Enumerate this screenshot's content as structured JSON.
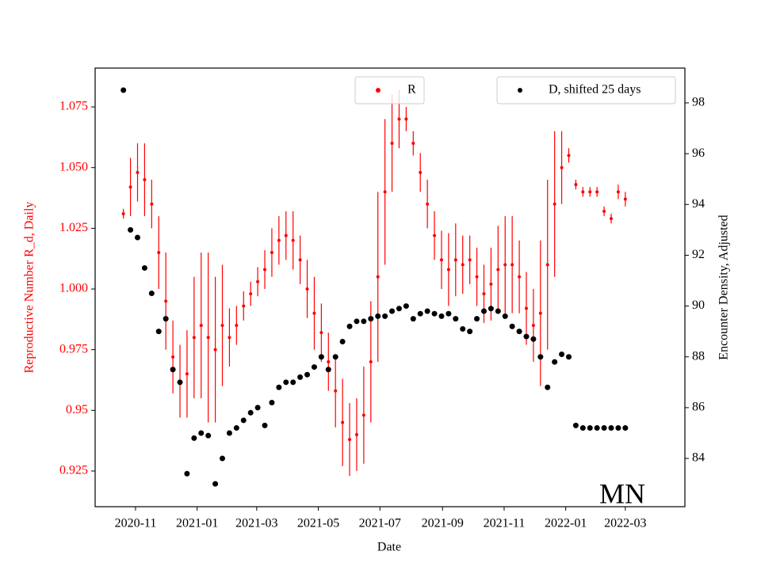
{
  "chart_data": {
    "type": "errorbar_scatter_dual",
    "xlabel": "Date",
    "ylabel": "Reproductive Number R_d, Daily",
    "y2label": "Encounter Density, Adjusted",
    "annotation": "MN",
    "xlim": [
      "2020-09-22",
      "2022-04-29"
    ],
    "xticks": [
      {
        "value": "2020-11-01",
        "label": "2020-11"
      },
      {
        "value": "2021-01-01",
        "label": "2021-01"
      },
      {
        "value": "2021-03-01",
        "label": "2021-03"
      },
      {
        "value": "2021-05-01",
        "label": "2021-05"
      },
      {
        "value": "2021-07-01",
        "label": "2021-07"
      },
      {
        "value": "2021-09-01",
        "label": "2021-09"
      },
      {
        "value": "2021-11-01",
        "label": "2021-11"
      },
      {
        "value": "2022-01-01",
        "label": "2022-01"
      },
      {
        "value": "2022-03-01",
        "label": "2022-03"
      }
    ],
    "ylim": [
      0.9103,
      1.091
    ],
    "yticks": [
      0.925,
      0.95,
      0.975,
      {
        "value": 1.0,
        "label": "1.000"
      },
      1.025,
      {
        "value": 1.05,
        "label": "1.050"
      },
      1.075
    ],
    "y2lim": [
      82.1,
      99.37
    ],
    "y2ticks": [
      84,
      86,
      88,
      90,
      92,
      94,
      96,
      98
    ],
    "x": [
      "2020-10-20",
      "2020-10-27",
      "2020-11-03",
      "2020-11-10",
      "2020-11-17",
      "2020-11-24",
      "2020-12-01",
      "2020-12-08",
      "2020-12-15",
      "2020-12-22",
      "2020-12-29",
      "2021-01-05",
      "2021-01-12",
      "2021-01-19",
      "2021-01-26",
      "2021-02-02",
      "2021-02-09",
      "2021-02-16",
      "2021-02-23",
      "2021-03-02",
      "2021-03-09",
      "2021-03-16",
      "2021-03-23",
      "2021-03-30",
      "2021-04-06",
      "2021-04-13",
      "2021-04-20",
      "2021-04-27",
      "2021-05-04",
      "2021-05-11",
      "2021-05-18",
      "2021-05-25",
      "2021-06-01",
      "2021-06-08",
      "2021-06-15",
      "2021-06-22",
      "2021-06-29",
      "2021-07-06",
      "2021-07-13",
      "2021-07-20",
      "2021-07-27",
      "2021-08-03",
      "2021-08-10",
      "2021-08-17",
      "2021-08-24",
      "2021-08-31",
      "2021-09-07",
      "2021-09-14",
      "2021-09-21",
      "2021-09-28",
      "2021-10-05",
      "2021-10-12",
      "2021-10-19",
      "2021-10-26",
      "2021-11-02",
      "2021-11-09",
      "2021-11-16",
      "2021-11-23",
      "2021-11-30",
      "2021-12-07",
      "2021-12-14",
      "2021-12-21",
      "2021-12-28",
      "2022-01-04",
      "2022-01-11",
      "2022-01-18",
      "2022-01-25",
      "2022-02-01",
      "2022-02-08",
      "2022-02-15",
      "2022-02-22",
      "2022-03-01"
    ],
    "series": [
      {
        "name": "R",
        "color": "#ff0000",
        "values": [
          1.031,
          1.042,
          1.048,
          1.045,
          1.035,
          1.015,
          0.995,
          0.972,
          0.962,
          0.965,
          0.98,
          0.985,
          0.98,
          0.975,
          0.985,
          0.98,
          0.985,
          0.993,
          0.998,
          1.003,
          1.008,
          1.015,
          1.02,
          1.022,
          1.02,
          1.012,
          1.0,
          0.99,
          0.982,
          0.97,
          0.958,
          0.945,
          0.938,
          0.94,
          0.948,
          0.97,
          1.005,
          1.04,
          1.06,
          1.07,
          1.07,
          1.06,
          1.048,
          1.035,
          1.022,
          1.012,
          1.008,
          1.012,
          1.01,
          1.012,
          1.005,
          0.998,
          1.002,
          1.008,
          1.01,
          1.01,
          1.005,
          0.992,
          0.985,
          0.99,
          1.01,
          1.035,
          1.05,
          1.055,
          1.043,
          1.04,
          1.04,
          1.04,
          1.032,
          1.029,
          1.04,
          1.037
        ],
        "errors": [
          0.002,
          0.012,
          0.012,
          0.015,
          0.01,
          0.015,
          0.02,
          0.015,
          0.015,
          0.018,
          0.025,
          0.03,
          0.035,
          0.03,
          0.025,
          0.012,
          0.008,
          0.006,
          0.005,
          0.006,
          0.008,
          0.01,
          0.01,
          0.01,
          0.012,
          0.01,
          0.012,
          0.015,
          0.012,
          0.012,
          0.015,
          0.018,
          0.015,
          0.015,
          0.02,
          0.025,
          0.035,
          0.03,
          0.02,
          0.012,
          0.005,
          0.005,
          0.008,
          0.01,
          0.01,
          0.012,
          0.015,
          0.015,
          0.012,
          0.01,
          0.012,
          0.012,
          0.015,
          0.018,
          0.02,
          0.02,
          0.015,
          0.015,
          0.015,
          0.03,
          0.035,
          0.03,
          0.015,
          0.003,
          0.002,
          0.002,
          0.002,
          0.002,
          0.002,
          0.002,
          0.003,
          0.003
        ]
      },
      {
        "name": "D, shifted 25 days",
        "color": "#000000",
        "axis": "y2",
        "values": [
          98.5,
          93.0,
          92.7,
          91.5,
          90.5,
          89.0,
          89.5,
          87.5,
          87.0,
          83.4,
          84.8,
          85.0,
          84.9,
          83.0,
          84.0,
          85.0,
          85.2,
          85.5,
          85.8,
          86.0,
          85.3,
          86.2,
          86.8,
          87.0,
          87.0,
          87.2,
          87.3,
          87.6,
          88.0,
          87.5,
          88.0,
          88.6,
          89.2,
          89.4,
          89.4,
          89.5,
          89.6,
          89.6,
          89.8,
          89.9,
          90.0,
          89.5,
          89.7,
          89.8,
          89.7,
          89.6,
          89.7,
          89.5,
          89.1,
          89.0,
          89.5,
          89.8,
          89.9,
          89.8,
          89.6,
          89.2,
          89.0,
          88.8,
          88.7,
          88.0,
          86.8,
          87.8,
          88.1,
          88.0,
          85.3,
          85.2,
          85.2,
          85.2,
          85.2,
          85.2,
          85.2,
          85.2
        ]
      }
    ]
  }
}
